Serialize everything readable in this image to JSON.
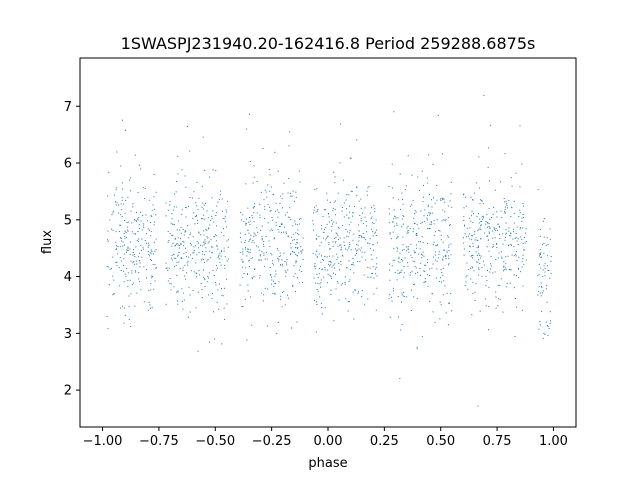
{
  "chart_data": {
    "type": "scatter",
    "title": "1SWASPJ231940.20-162416.8 Period 259288.6875s",
    "xlabel": "phase",
    "ylabel": "flux",
    "xlim": [
      -1.1,
      1.1
    ],
    "ylim": [
      1.35,
      7.85
    ],
    "x_ticks": [
      {
        "value": -1.0,
        "label": "−1.00"
      },
      {
        "value": -0.75,
        "label": "−0.75"
      },
      {
        "value": -0.5,
        "label": "−0.50"
      },
      {
        "value": -0.25,
        "label": "−0.25"
      },
      {
        "value": 0.0,
        "label": "0.00"
      },
      {
        "value": 0.25,
        "label": "0.25"
      },
      {
        "value": 0.5,
        "label": "0.50"
      },
      {
        "value": 0.75,
        "label": "0.75"
      },
      {
        "value": 1.0,
        "label": "1.00"
      }
    ],
    "y_ticks": [
      {
        "value": 2,
        "label": "2"
      },
      {
        "value": 3,
        "label": "3"
      },
      {
        "value": 4,
        "label": "4"
      },
      {
        "value": 5,
        "label": "5"
      },
      {
        "value": 6,
        "label": "6"
      },
      {
        "value": 7,
        "label": "7"
      }
    ],
    "grid": false,
    "legend": "none",
    "point_color": "#1f77b4",
    "observation_windows": [
      {
        "phase_start": -0.98,
        "phase_end": -0.76,
        "flux_center": 4.6,
        "flux_spread": 0.55
      },
      {
        "phase_start": -0.72,
        "phase_end": -0.44,
        "flux_center": 4.55,
        "flux_spread": 0.6
      },
      {
        "phase_start": -0.39,
        "phase_end": -0.11,
        "flux_center": 4.6,
        "flux_spread": 0.55
      },
      {
        "phase_start": -0.07,
        "phase_end": 0.22,
        "flux_center": 4.55,
        "flux_spread": 0.6
      },
      {
        "phase_start": 0.27,
        "phase_end": 0.55,
        "flux_center": 4.55,
        "flux_spread": 0.6
      },
      {
        "phase_start": 0.6,
        "phase_end": 0.88,
        "flux_center": 4.6,
        "flux_spread": 0.55
      },
      {
        "phase_start": 0.93,
        "phase_end": 0.99,
        "flux_center": 4.0,
        "flux_spread": 0.55
      }
    ]
  }
}
